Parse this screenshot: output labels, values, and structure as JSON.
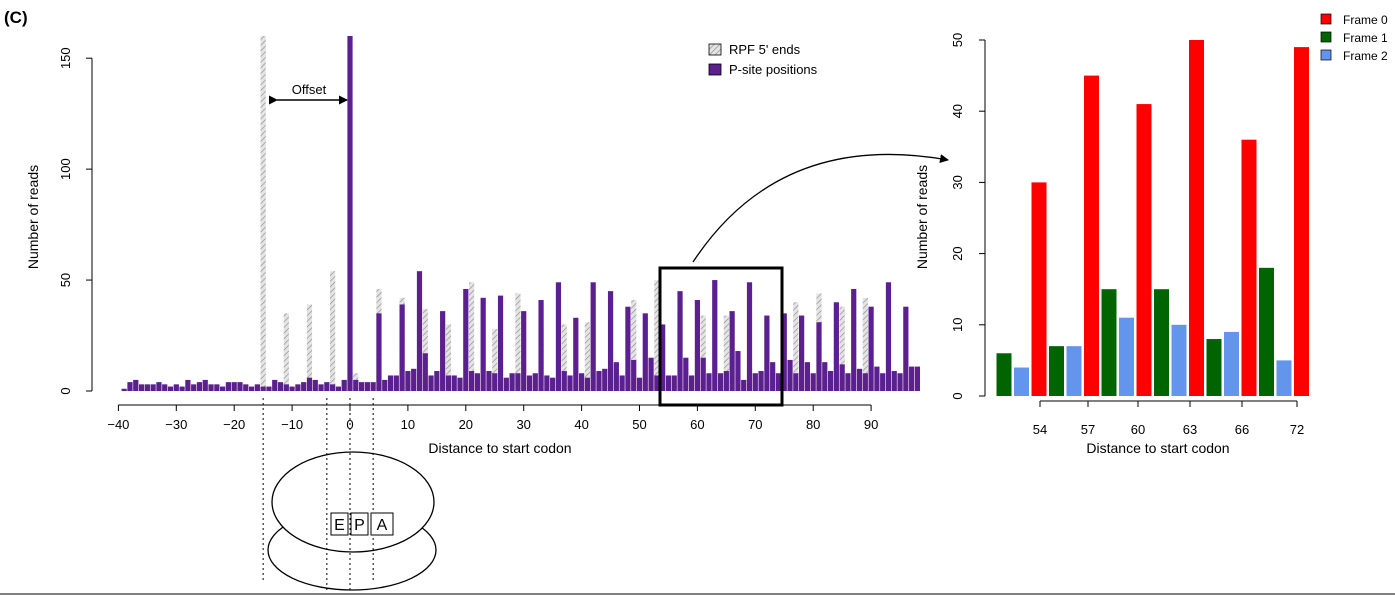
{
  "panel_label": "(C)",
  "chart_data": [
    {
      "type": "bar",
      "xlabel": "Distance to start codon",
      "ylabel": "Number of reads",
      "xlim": [
        -40,
        99
      ],
      "ylim": [
        0,
        160
      ],
      "x_ticks": [
        "−40",
        "−30",
        "−20",
        "−10",
        "0",
        "10",
        "20",
        "30",
        "40",
        "50",
        "60",
        "70",
        "80",
        "90"
      ],
      "y_ticks": [
        "0",
        "50",
        "100",
        "150"
      ],
      "legend_position": "top-right",
      "offset_label": "Offset",
      "ribosome_sites": [
        "E",
        "P",
        "A"
      ],
      "series": [
        {
          "name": "RPF 5' ends",
          "color": "#d0d0d0",
          "x": [
            -15,
            -11,
            -7,
            -3,
            1,
            5,
            9,
            13,
            17,
            21,
            25,
            29,
            33,
            37,
            41,
            45,
            49,
            53,
            57,
            61,
            65,
            69,
            73,
            77,
            81,
            85,
            89
          ],
          "values": [
            160,
            35,
            39,
            54,
            8,
            46,
            42,
            37,
            30,
            49,
            28,
            44,
            28,
            30,
            31,
            45,
            41,
            50,
            35,
            34,
            34,
            10,
            10,
            40,
            44,
            38,
            42
          ]
        },
        {
          "name": "P-site positions",
          "color": "#5b1f8f",
          "x": [
            -39,
            -38,
            -37,
            -36,
            -35,
            -34,
            -33,
            -32,
            -31,
            -30,
            -29,
            -28,
            -27,
            -26,
            -25,
            -24,
            -23,
            -22,
            -21,
            -20,
            -19,
            -18,
            -17,
            -16,
            -15,
            -14,
            -13,
            -12,
            -11,
            -10,
            -9,
            -8,
            -7,
            -6,
            -5,
            -4,
            -3,
            -2,
            -1,
            0,
            1,
            2,
            3,
            4,
            5,
            6,
            7,
            8,
            9,
            10,
            11,
            12,
            13,
            14,
            15,
            16,
            17,
            18,
            19,
            20,
            21,
            22,
            23,
            24,
            25,
            26,
            27,
            28,
            29,
            30,
            31,
            32,
            33,
            34,
            35,
            36,
            37,
            38,
            39,
            40,
            41,
            42,
            43,
            44,
            45,
            46,
            47,
            48,
            49,
            50,
            51,
            52,
            53,
            54,
            55,
            56,
            57,
            58,
            59,
            60,
            61,
            62,
            63,
            64,
            65,
            66,
            67,
            68,
            69,
            70,
            71,
            72,
            73,
            74,
            75,
            76,
            77,
            78,
            79,
            80,
            81,
            82,
            83,
            84,
            85,
            86,
            87,
            88,
            89,
            90,
            91,
            92,
            93,
            94,
            95,
            96,
            97,
            98
          ],
          "values": [
            1,
            4,
            5,
            3,
            3,
            3,
            4,
            3,
            2,
            3,
            2,
            5,
            3,
            4,
            5,
            3,
            3,
            2,
            4,
            4,
            4,
            3,
            2,
            3,
            2,
            2,
            5,
            4,
            3,
            2,
            3,
            4,
            6,
            5,
            3,
            4,
            3,
            2,
            5,
            160,
            5,
            4,
            4,
            4,
            35,
            5,
            7,
            7,
            39,
            9,
            10,
            54,
            17,
            7,
            9,
            36,
            7,
            7,
            6,
            46,
            9,
            8,
            42,
            9,
            8,
            43,
            6,
            8,
            8,
            36,
            7,
            8,
            41,
            7,
            6,
            49,
            9,
            7,
            33,
            8,
            6,
            49,
            9,
            10,
            45,
            13,
            7,
            38,
            14,
            6,
            35,
            15,
            7,
            30,
            7,
            7,
            45,
            15,
            7,
            41,
            15,
            8,
            50,
            8,
            9,
            36,
            18,
            5,
            49,
            8,
            9,
            34,
            13,
            8,
            35,
            14,
            8,
            34,
            13,
            8,
            31,
            13,
            9,
            40,
            12,
            8,
            46,
            10,
            8,
            38,
            11,
            8,
            49,
            9,
            8,
            38,
            11,
            11
          ]
        }
      ]
    },
    {
      "type": "bar",
      "xlabel": "Distance to start codon",
      "ylabel": "Number of reads",
      "ylim": [
        0,
        50
      ],
      "y_ticks": [
        "0",
        "10",
        "20",
        "30",
        "40",
        "50"
      ],
      "categories": [
        "54",
        "57",
        "60",
        "63",
        "66",
        "72"
      ],
      "legend_position": "top-right",
      "series": [
        {
          "name": "Frame 0",
          "color": "#ff0000",
          "x": [
            53,
            56,
            59,
            62,
            65,
            68
          ],
          "values": [
            30,
            45,
            41,
            50,
            36,
            49
          ]
        },
        {
          "name": "Frame 1",
          "color": "#006400",
          "x": [
            51,
            54,
            57,
            60,
            63,
            66
          ],
          "values": [
            6,
            7,
            15,
            15,
            8,
            18
          ]
        },
        {
          "name": "Frame 2",
          "color": "#6495ed",
          "x": [
            52,
            55,
            58,
            61,
            64,
            67
          ],
          "values": [
            4,
            7,
            11,
            10,
            9,
            5
          ]
        }
      ]
    }
  ]
}
